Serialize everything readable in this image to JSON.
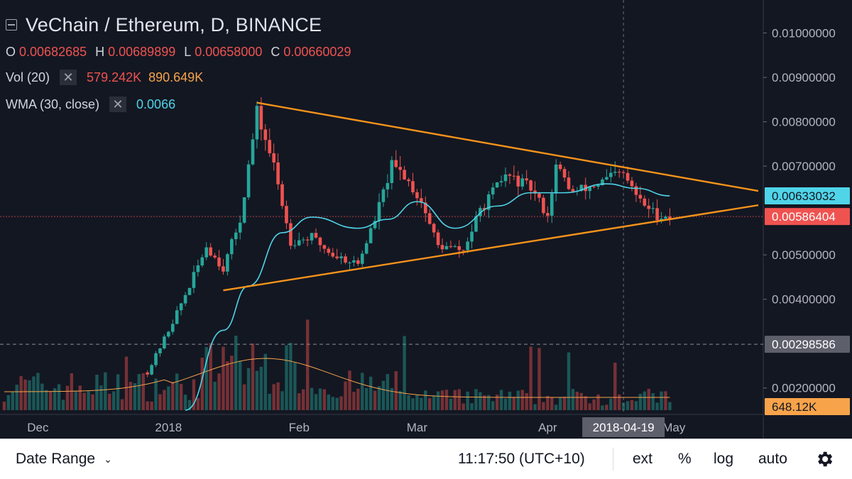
{
  "legend": {
    "title": "VeChain / Ethereum, D, BINANCE",
    "ohlc": [
      {
        "k": "O",
        "v": "0.00682685"
      },
      {
        "k": "H",
        "v": "0.00689899"
      },
      {
        "k": "L",
        "v": "0.00658000"
      },
      {
        "k": "C",
        "v": "0.00660029"
      }
    ],
    "volume": {
      "name": "Vol (20)",
      "x": "✕",
      "value": "579.242K",
      "ma": "890.649K"
    },
    "wma": {
      "name": "WMA (30, close)",
      "x": "✕",
      "value": "0.0066"
    }
  },
  "bottom_bar": {
    "date_range": "Date Range",
    "chevron": "⌄",
    "clock": "11:17:50 (UTC+10)",
    "ext": "ext",
    "percent": "%",
    "log": "log",
    "auto": "auto",
    "settings_icon": "gear-icon"
  },
  "colors": {
    "background": "#131722",
    "up": "#26a69a",
    "down": "#ef5350",
    "wma": "#4fd4e8",
    "trendline": "#f7931a",
    "vol_ma": "#f7a34a"
  },
  "chart_data": {
    "type": "candlestick",
    "y_axis": {
      "ticks": [
        "0.00200000",
        "0.00400000",
        "0.00500000",
        "0.00700000",
        "0.00800000",
        "0.00900000",
        "0.01000000"
      ],
      "range": [
        0.0015,
        0.0106
      ],
      "badges": [
        {
          "label": "0.00633032",
          "value": 0.00633032,
          "color": "#4fd4e8",
          "text_color": "#131722"
        },
        {
          "label": "0.00586404",
          "value": 0.00586404,
          "color": "#ef5350",
          "text_color": "#ffffff"
        },
        {
          "label": "0.00298586",
          "value": 0.00298586,
          "color": "#5d606b",
          "text_color": "#ffffff"
        },
        {
          "label": "648.12K",
          "value": 0.00158,
          "color": "#f7a34a",
          "text_color": "#131722"
        }
      ]
    },
    "x_axis": {
      "range": [
        "2017-11-22",
        "2018-05-21"
      ],
      "ticks": [
        {
          "label": "Dec",
          "date": "2017-12-01"
        },
        {
          "label": "2018",
          "date": "2018-01-01"
        },
        {
          "label": "Feb",
          "date": "2018-02-01"
        },
        {
          "label": "Mar",
          "date": "2018-03-01"
        },
        {
          "label": "Apr",
          "date": "2018-04-01"
        },
        {
          "label": "May",
          "date": "2018-05-01"
        }
      ],
      "crosshair": {
        "label": "2018-04-19",
        "date": "2018-04-19"
      }
    },
    "price_path": [
      [
        "2017-12-27",
        0.00235
      ],
      [
        "2018-01-01",
        0.0033
      ],
      [
        "2018-01-06",
        0.0043
      ],
      [
        "2018-01-10",
        0.0052
      ],
      [
        "2018-01-14",
        0.0047
      ],
      [
        "2018-01-18",
        0.0058
      ],
      [
        "2018-01-22",
        0.0082
      ],
      [
        "2018-01-26",
        0.007
      ],
      [
        "2018-01-30",
        0.0053
      ],
      [
        "2018-02-04",
        0.0054
      ],
      [
        "2018-02-09",
        0.005
      ],
      [
        "2018-02-15",
        0.0048
      ],
      [
        "2018-02-19",
        0.0058
      ],
      [
        "2018-02-23",
        0.007
      ],
      [
        "2018-02-26",
        0.0068
      ],
      [
        "2018-03-02",
        0.0062
      ],
      [
        "2018-03-06",
        0.0052
      ],
      [
        "2018-03-12",
        0.0051
      ],
      [
        "2018-03-16",
        0.006
      ],
      [
        "2018-03-22",
        0.0068
      ],
      [
        "2018-03-28",
        0.0065
      ],
      [
        "2018-04-01",
        0.0059
      ],
      [
        "2018-04-03",
        0.007
      ],
      [
        "2018-04-07",
        0.0064
      ],
      [
        "2018-04-13",
        0.0066
      ],
      [
        "2018-04-17",
        0.0068
      ],
      [
        "2018-04-19",
        0.0068
      ],
      [
        "2018-04-23",
        0.0062
      ],
      [
        "2018-04-27",
        0.0059
      ],
      [
        "2018-04-30",
        0.00586
      ]
    ],
    "wma_path": [
      [
        "2018-01-05",
        0.0015
      ],
      [
        "2018-01-14",
        0.0033
      ],
      [
        "2018-01-20",
        0.0043
      ],
      [
        "2018-01-28",
        0.0055
      ],
      [
        "2018-02-04",
        0.00585
      ],
      [
        "2018-02-15",
        0.0056
      ],
      [
        "2018-02-22",
        0.0058
      ],
      [
        "2018-03-01",
        0.0062
      ],
      [
        "2018-03-10",
        0.0056
      ],
      [
        "2018-03-20",
        0.0061
      ],
      [
        "2018-03-28",
        0.0064
      ],
      [
        "2018-04-05",
        0.0064
      ],
      [
        "2018-04-15",
        0.0066
      ],
      [
        "2018-04-22",
        0.0065
      ],
      [
        "2018-04-30",
        0.00633
      ]
    ],
    "trendlines": [
      {
        "from": [
          "2018-01-22",
          0.00843
        ],
        "to": [
          "2018-05-21",
          0.00644
        ]
      },
      {
        "from": [
          "2018-01-14",
          0.0042
        ],
        "to": [
          "2018-05-21",
          0.00612
        ]
      }
    ]
  }
}
